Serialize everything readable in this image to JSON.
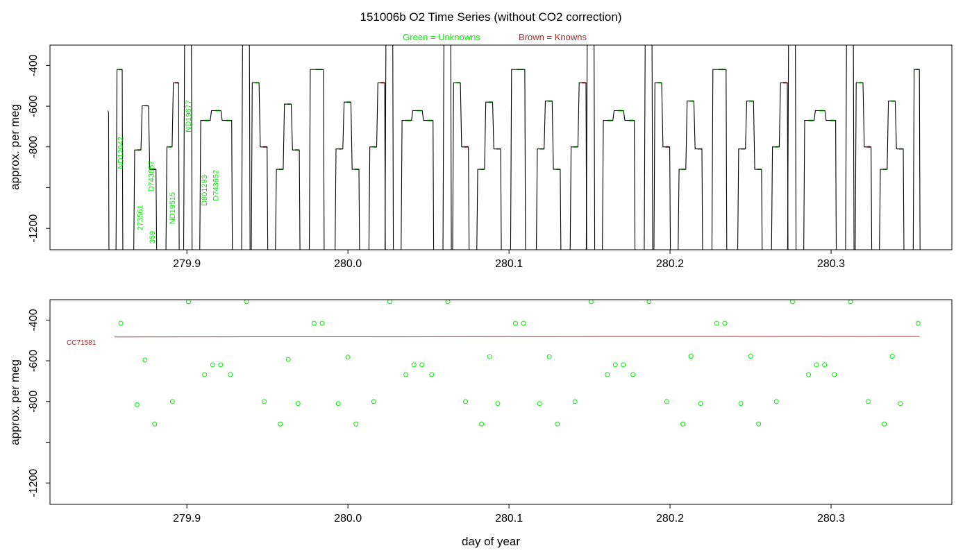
{
  "header": {
    "title": "151006b   O2 Time Series (without CO2 correction)",
    "legend_unknowns": "Green = Unknowns",
    "legend_knowns": "Brown = Knowns"
  },
  "colors": {
    "unknowns": "#00ee00",
    "knowns": "#a52a2a",
    "trace": "#000000",
    "axis": "#000000"
  },
  "chart_data": [
    {
      "type": "line",
      "panel": "top",
      "ylabel": "approx. per meg",
      "xlabel": "",
      "xlim": [
        279.815,
        280.375
      ],
      "ylim": [
        -1305,
        -300
      ],
      "y_reversed": true,
      "xticks": [
        279.9,
        280.0,
        280.1,
        280.2,
        280.3
      ],
      "xtick_labels": [
        "279.9",
        "280.0",
        "280.1",
        "280.2",
        "280.3"
      ],
      "yticks": [
        -400,
        -800,
        -1200
      ],
      "ytick_labels": [
        "-400",
        "-800",
        "-1200"
      ],
      "y_minor_ticks": [
        -600,
        -1000
      ],
      "y_minor_tick_labels": [
        "-600",
        ""
      ],
      "trace": {
        "baseline": -1320,
        "start": {
          "x": 279.851,
          "y": -622
        },
        "segments": [
          {
            "start": 279.856,
            "end": 279.86,
            "levels": [
              -420
            ],
            "status": "unknown"
          },
          {
            "start": 279.867,
            "end": 279.881,
            "levels": [
              -815,
              -598,
              -910
            ],
            "status": "unknown"
          },
          {
            "start": 279.887,
            "end": 279.895,
            "levels": [
              -800,
              -485
            ],
            "status": "known"
          },
          {
            "start": 279.898,
            "end": 279.903,
            "levels": [
              -265
            ],
            "status": "unknown"
          },
          {
            "start": 279.908,
            "end": 279.928,
            "levels": [
              -670,
              -622,
              -670
            ],
            "status": "unknown"
          },
          {
            "start": 279.934,
            "end": 279.939,
            "levels": [
              -265
            ],
            "status": "unknown"
          },
          {
            "start": 279.94,
            "end": 279.95,
            "levels": [
              -485,
              -800
            ],
            "status": "known"
          },
          {
            "start": 279.955,
            "end": 279.97,
            "levels": [
              -910,
              -590,
              -815
            ],
            "status": "unknown"
          },
          {
            "start": 279.976,
            "end": 279.985,
            "levels": [
              -420
            ],
            "status": "unknown"
          },
          {
            "start": 279.992,
            "end": 280.007,
            "levels": [
              -810,
              -580,
              -910
            ],
            "status": "unknown"
          },
          {
            "start": 280.013,
            "end": 280.023,
            "levels": [
              -800,
              -485
            ],
            "status": "known"
          },
          {
            "start": 280.023,
            "end": 280.028,
            "levels": [
              -265
            ],
            "status": "unknown"
          },
          {
            "start": 280.033,
            "end": 280.053,
            "levels": [
              -670,
              -622,
              -670
            ],
            "status": "unknown"
          },
          {
            "start": 280.059,
            "end": 280.064,
            "levels": [
              -265
            ],
            "status": "unknown"
          },
          {
            "start": 280.065,
            "end": 280.075,
            "levels": [
              -485,
              -800
            ],
            "status": "known"
          },
          {
            "start": 280.08,
            "end": 280.095,
            "levels": [
              -910,
              -580,
              -810
            ],
            "status": "unknown"
          },
          {
            "start": 280.101,
            "end": 280.11,
            "levels": [
              -420
            ],
            "status": "unknown"
          },
          {
            "start": 280.117,
            "end": 280.132,
            "levels": [
              -810,
              -575,
              -910
            ],
            "status": "unknown"
          },
          {
            "start": 280.138,
            "end": 280.148,
            "levels": [
              -800,
              -485
            ],
            "status": "known"
          },
          {
            "start": 280.148,
            "end": 280.153,
            "levels": [
              -265
            ],
            "status": "unknown"
          },
          {
            "start": 280.158,
            "end": 280.178,
            "levels": [
              -670,
              -622,
              -670
            ],
            "status": "unknown"
          },
          {
            "start": 280.184,
            "end": 280.189,
            "levels": [
              -265
            ],
            "status": "unknown"
          },
          {
            "start": 280.19,
            "end": 280.2,
            "levels": [
              -485,
              -800
            ],
            "status": "known"
          },
          {
            "start": 280.205,
            "end": 280.22,
            "levels": [
              -910,
              -575,
              -810
            ],
            "status": "unknown"
          },
          {
            "start": 280.226,
            "end": 280.235,
            "levels": [
              -420
            ],
            "status": "unknown"
          },
          {
            "start": 280.242,
            "end": 280.257,
            "levels": [
              -810,
              -575,
              -910
            ],
            "status": "unknown"
          },
          {
            "start": 280.263,
            "end": 280.273,
            "levels": [
              -800,
              -485
            ],
            "status": "known"
          },
          {
            "start": 280.273,
            "end": 280.278,
            "levels": [
              -265
            ],
            "status": "unknown"
          },
          {
            "start": 280.283,
            "end": 280.303,
            "levels": [
              -670,
              -622,
              -670
            ],
            "status": "unknown"
          },
          {
            "start": 280.309,
            "end": 280.314,
            "levels": [
              -265
            ],
            "status": "unknown"
          },
          {
            "start": 280.315,
            "end": 280.325,
            "levels": [
              -485,
              -800
            ],
            "status": "known"
          },
          {
            "start": 280.33,
            "end": 280.345,
            "levels": [
              -910,
              -575,
              -810
            ],
            "status": "unknown"
          },
          {
            "start": 280.351,
            "end": 280.355,
            "levels": [
              -420
            ],
            "status": "unknown"
          }
        ]
      },
      "sample_labels": [
        {
          "text": "ND12042",
          "x": 279.8605,
          "y": -908
        },
        {
          "text": "273561",
          "x": 279.8725,
          "y": -1210
        },
        {
          "text": "D743657",
          "x": 279.8795,
          "y": -1020
        },
        {
          "text": "359",
          "x": 279.88,
          "y": -1275
        },
        {
          "text": "ND19515",
          "x": 279.8925,
          "y": -1180
        },
        {
          "text": "ND19677",
          "x": 279.9025,
          "y": -728
        },
        {
          "text": "D801293",
          "x": 279.9125,
          "y": -1090
        },
        {
          "text": "D743652",
          "x": 279.9195,
          "y": -1065
        }
      ]
    },
    {
      "type": "scatter",
      "panel": "bottom",
      "ylabel": "approx. per meg",
      "xlabel": "day of year",
      "xlim": [
        279.815,
        280.375
      ],
      "ylim": [
        -1305,
        -300
      ],
      "y_reversed": true,
      "xticks": [
        279.9,
        280.0,
        280.1,
        280.2,
        280.3
      ],
      "xtick_labels": [
        "279.9",
        "280.0",
        "280.1",
        "280.2",
        "280.3"
      ],
      "yticks": [
        -400,
        -800,
        -1200
      ],
      "ytick_labels": [
        "-400",
        "-800",
        "-1200"
      ],
      "y_minor_ticks": [
        -600,
        -1000
      ],
      "y_minor_tick_labels": [
        "-600",
        ""
      ],
      "points": [
        [
          279.859,
          -416
        ],
        [
          279.869,
          -815
        ],
        [
          279.874,
          -596
        ],
        [
          279.88,
          -910
        ],
        [
          279.891,
          -800
        ],
        [
          279.901,
          -310
        ],
        [
          279.911,
          -668
        ],
        [
          279.916,
          -620
        ],
        [
          279.921,
          -620
        ],
        [
          279.927,
          -668
        ],
        [
          279.937,
          -310
        ],
        [
          279.948,
          -800
        ],
        [
          279.958,
          -910
        ],
        [
          279.963,
          -594
        ],
        [
          279.969,
          -810
        ],
        [
          279.979,
          -416
        ],
        [
          279.984,
          -416
        ],
        [
          279.994,
          -810
        ],
        [
          280.0,
          -582
        ],
        [
          280.005,
          -910
        ],
        [
          280.016,
          -800
        ],
        [
          280.026,
          -310
        ],
        [
          280.036,
          -668
        ],
        [
          280.041,
          -620
        ],
        [
          280.046,
          -620
        ],
        [
          280.052,
          -668
        ],
        [
          280.062,
          -310
        ],
        [
          280.073,
          -800
        ],
        [
          280.083,
          -910
        ],
        [
          280.088,
          -580
        ],
        [
          280.093,
          -810
        ],
        [
          280.104,
          -416
        ],
        [
          280.109,
          -416
        ],
        [
          280.119,
          -810
        ],
        [
          280.125,
          -580
        ],
        [
          280.13,
          -910
        ],
        [
          280.141,
          -800
        ],
        [
          280.151,
          -310
        ],
        [
          280.161,
          -668
        ],
        [
          280.166,
          -620
        ],
        [
          280.171,
          -620
        ],
        [
          280.177,
          -668
        ],
        [
          280.187,
          -310
        ],
        [
          280.198,
          -800
        ],
        [
          280.208,
          -910
        ],
        [
          280.213,
          -578
        ],
        [
          280.219,
          -810
        ],
        [
          280.229,
          -416
        ],
        [
          280.234,
          -416
        ],
        [
          280.244,
          -810
        ],
        [
          280.25,
          -578
        ],
        [
          280.255,
          -910
        ],
        [
          280.266,
          -800
        ],
        [
          280.276,
          -310
        ],
        [
          280.286,
          -668
        ],
        [
          280.291,
          -620
        ],
        [
          280.296,
          -620
        ],
        [
          280.302,
          -668
        ],
        [
          280.312,
          -310
        ],
        [
          280.323,
          -800
        ],
        [
          280.333,
          -910
        ],
        [
          280.338,
          -578
        ],
        [
          280.343,
          -810
        ],
        [
          280.354,
          -416
        ]
      ],
      "reference_line": {
        "label": "CC71581",
        "x": [
          279.855,
          280.355
        ],
        "y": [
          -483,
          -480
        ]
      }
    }
  ]
}
